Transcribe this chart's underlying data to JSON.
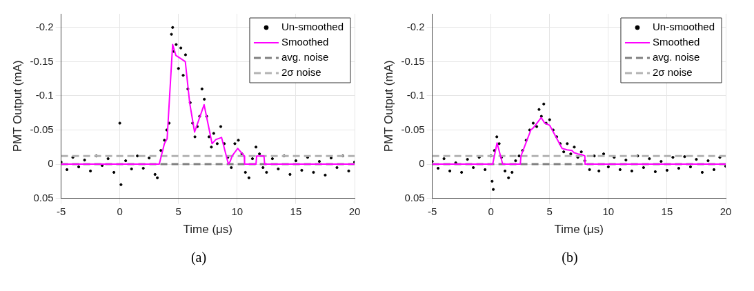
{
  "chart_data": [
    {
      "type": "line",
      "xlabel": "Time (μs)",
      "ylabel": "PMT Output (mA)",
      "annotations": [
        "(a)"
      ],
      "xlim": [
        -5,
        20
      ],
      "xticks": [
        -5,
        0,
        5,
        10,
        15,
        20
      ],
      "ylim": [
        0.05,
        -0.22
      ],
      "yticks": [
        -0.2,
        -0.15,
        -0.1,
        -0.05,
        0,
        0.05
      ],
      "grid": true,
      "legend": "top right",
      "series": [
        {
          "name": "Un-smoothed",
          "type": "scatter",
          "color": "#000000",
          "marker": "circle",
          "x": [
            -5,
            -4.5,
            -4,
            -3.5,
            -3,
            -2.5,
            -2,
            -1.5,
            -1,
            -0.5,
            0,
            0.1,
            0.5,
            1,
            1.5,
            2,
            2.5,
            3,
            3.2,
            3.5,
            3.8,
            4,
            4.2,
            4.4,
            4.5,
            4.6,
            4.8,
            5,
            5.2,
            5.4,
            5.6,
            5.8,
            6,
            6.2,
            6.4,
            6.6,
            6.8,
            7,
            7.2,
            7.4,
            7.6,
            7.8,
            8,
            8.3,
            8.6,
            8.9,
            9.2,
            9.5,
            9.8,
            10.1,
            10.4,
            10.7,
            11,
            11.3,
            11.6,
            11.9,
            12.2,
            12.5,
            13,
            13.5,
            14,
            14.5,
            15,
            15.5,
            16,
            16.5,
            17,
            17.5,
            18,
            18.5,
            19,
            19.5,
            20
          ],
          "values": [
            -0.003,
            0.008,
            -0.01,
            0.004,
            -0.006,
            0.01,
            -0.012,
            0.002,
            -0.008,
            0.012,
            -0.06,
            0.03,
            -0.005,
            0.007,
            -0.012,
            0.006,
            -0.009,
            0.015,
            0.02,
            -0.02,
            -0.035,
            -0.05,
            -0.06,
            -0.19,
            -0.2,
            -0.165,
            -0.175,
            -0.14,
            -0.17,
            -0.13,
            -0.16,
            -0.11,
            -0.09,
            -0.06,
            -0.04,
            -0.055,
            -0.07,
            -0.11,
            -0.095,
            -0.07,
            -0.04,
            -0.025,
            -0.045,
            -0.03,
            -0.055,
            -0.03,
            -0.01,
            0.005,
            -0.03,
            -0.035,
            -0.015,
            0.012,
            0.02,
            -0.008,
            -0.025,
            -0.015,
            0.005,
            0.012,
            -0.008,
            0.007,
            -0.012,
            0.015,
            -0.005,
            0.009,
            -0.01,
            0.012,
            -0.004,
            0.016,
            -0.009,
            0.005,
            -0.012,
            0.01,
            -0.003
          ]
        },
        {
          "name": "Smoothed",
          "type": "line",
          "color": "#ff00ff",
          "line_style": "solid",
          "x": [
            -5,
            3.36,
            3.8,
            4.03,
            4.5,
            4.78,
            5.14,
            5.58,
            5.95,
            6.37,
            7.18,
            7.86,
            8.18,
            8.67,
            9.25,
            9.4,
            9.57,
            10.04,
            10.6,
            10.63,
            11.6,
            11.66,
            12.28,
            12.34,
            20
          ],
          "values": [
            0,
            0,
            -0.03,
            -0.037,
            -0.175,
            -0.159,
            -0.155,
            -0.15,
            -0.09,
            -0.047,
            -0.087,
            -0.03,
            -0.036,
            -0.039,
            0,
            -0.004,
            -0.012,
            -0.023,
            -0.012,
            0,
            0,
            -0.012,
            -0.012,
            0,
            0
          ]
        },
        {
          "name": "avg. noise",
          "type": "line",
          "color": "#808080",
          "line_style": "dashed",
          "x": [
            -5,
            20
          ],
          "values": [
            0,
            0
          ]
        },
        {
          "name": "2σ noise",
          "type": "line",
          "color": "#b3b3b3",
          "line_style": "dashed",
          "x": [
            -5,
            20
          ],
          "values": [
            -0.012,
            -0.012
          ]
        }
      ]
    },
    {
      "type": "line",
      "xlabel": "Time (μs)",
      "ylabel": "PMT Output (mA)",
      "annotations": [
        "(b)"
      ],
      "xlim": [
        -5,
        20
      ],
      "xticks": [
        -5,
        0,
        5,
        10,
        15,
        20
      ],
      "ylim": [
        0.05,
        -0.22
      ],
      "yticks": [
        -0.2,
        -0.15,
        -0.1,
        -0.05,
        0,
        0.05
      ],
      "grid": true,
      "legend": "top right",
      "series": [
        {
          "name": "Un-smoothed",
          "type": "scatter",
          "color": "#000000",
          "marker": "circle",
          "x": [
            -5,
            -4.5,
            -4,
            -3.5,
            -3,
            -2.5,
            -2,
            -1.5,
            -1,
            -0.5,
            0,
            0.1,
            0.2,
            0.3,
            0.5,
            0.7,
            0.9,
            1.2,
            1.5,
            1.8,
            2.1,
            2.4,
            2.7,
            3,
            3.3,
            3.6,
            3.9,
            4.1,
            4.3,
            4.5,
            4.7,
            5,
            5.3,
            5.6,
            5.9,
            6.2,
            6.5,
            6.8,
            7.1,
            7.4,
            7.7,
            8,
            8.4,
            8.8,
            9.2,
            9.6,
            10,
            10.5,
            11,
            11.5,
            12,
            12.5,
            13,
            13.5,
            14,
            14.5,
            15,
            15.5,
            16,
            16.5,
            17,
            17.5,
            18,
            18.5,
            19,
            19.5,
            20
          ],
          "values": [
            -0.004,
            0.006,
            -0.008,
            0.01,
            -0.002,
            0.012,
            -0.007,
            0.005,
            -0.01,
            0.008,
            -0.012,
            0.025,
            0.037,
            -0.02,
            -0.04,
            -0.03,
            -0.01,
            0.01,
            0.02,
            0.012,
            -0.005,
            -0.012,
            -0.02,
            -0.035,
            -0.05,
            -0.06,
            -0.055,
            -0.08,
            -0.07,
            -0.088,
            -0.06,
            -0.065,
            -0.05,
            -0.04,
            -0.03,
            -0.018,
            -0.03,
            -0.015,
            -0.025,
            -0.01,
            -0.018,
            -0.005,
            0.008,
            -0.012,
            0.01,
            -0.015,
            0.004,
            -0.01,
            0.008,
            -0.006,
            0.01,
            -0.012,
            0.005,
            -0.008,
            0.011,
            -0.004,
            0.009,
            -0.01,
            0.006,
            -0.011,
            0.004,
            -0.007,
            0.012,
            -0.005,
            0.008,
            -0.01,
            0.003
          ]
        },
        {
          "name": "Smoothed",
          "type": "line",
          "color": "#ff00ff",
          "line_style": "solid",
          "x": [
            -5,
            0.15,
            0.52,
            1.0,
            2.5,
            2.56,
            3.4,
            3.6,
            4.28,
            4.58,
            5.0,
            6.06,
            6.48,
            6.9,
            7.06,
            7.4,
            7.74,
            8.0,
            8.02,
            20
          ],
          "values": [
            0,
            0,
            -0.031,
            0,
            0,
            -0.012,
            -0.05,
            -0.053,
            -0.068,
            -0.06,
            -0.057,
            -0.023,
            -0.021,
            -0.02,
            -0.017,
            -0.015,
            -0.014,
            -0.012,
            0,
            0
          ]
        },
        {
          "name": "avg. noise",
          "type": "line",
          "color": "#808080",
          "line_style": "dashed",
          "x": [
            -5,
            20
          ],
          "values": [
            0,
            0
          ]
        },
        {
          "name": "2σ noise",
          "type": "line",
          "color": "#b3b3b3",
          "line_style": "dashed",
          "x": [
            -5,
            20
          ],
          "values": [
            -0.012,
            -0.012
          ]
        }
      ]
    }
  ]
}
